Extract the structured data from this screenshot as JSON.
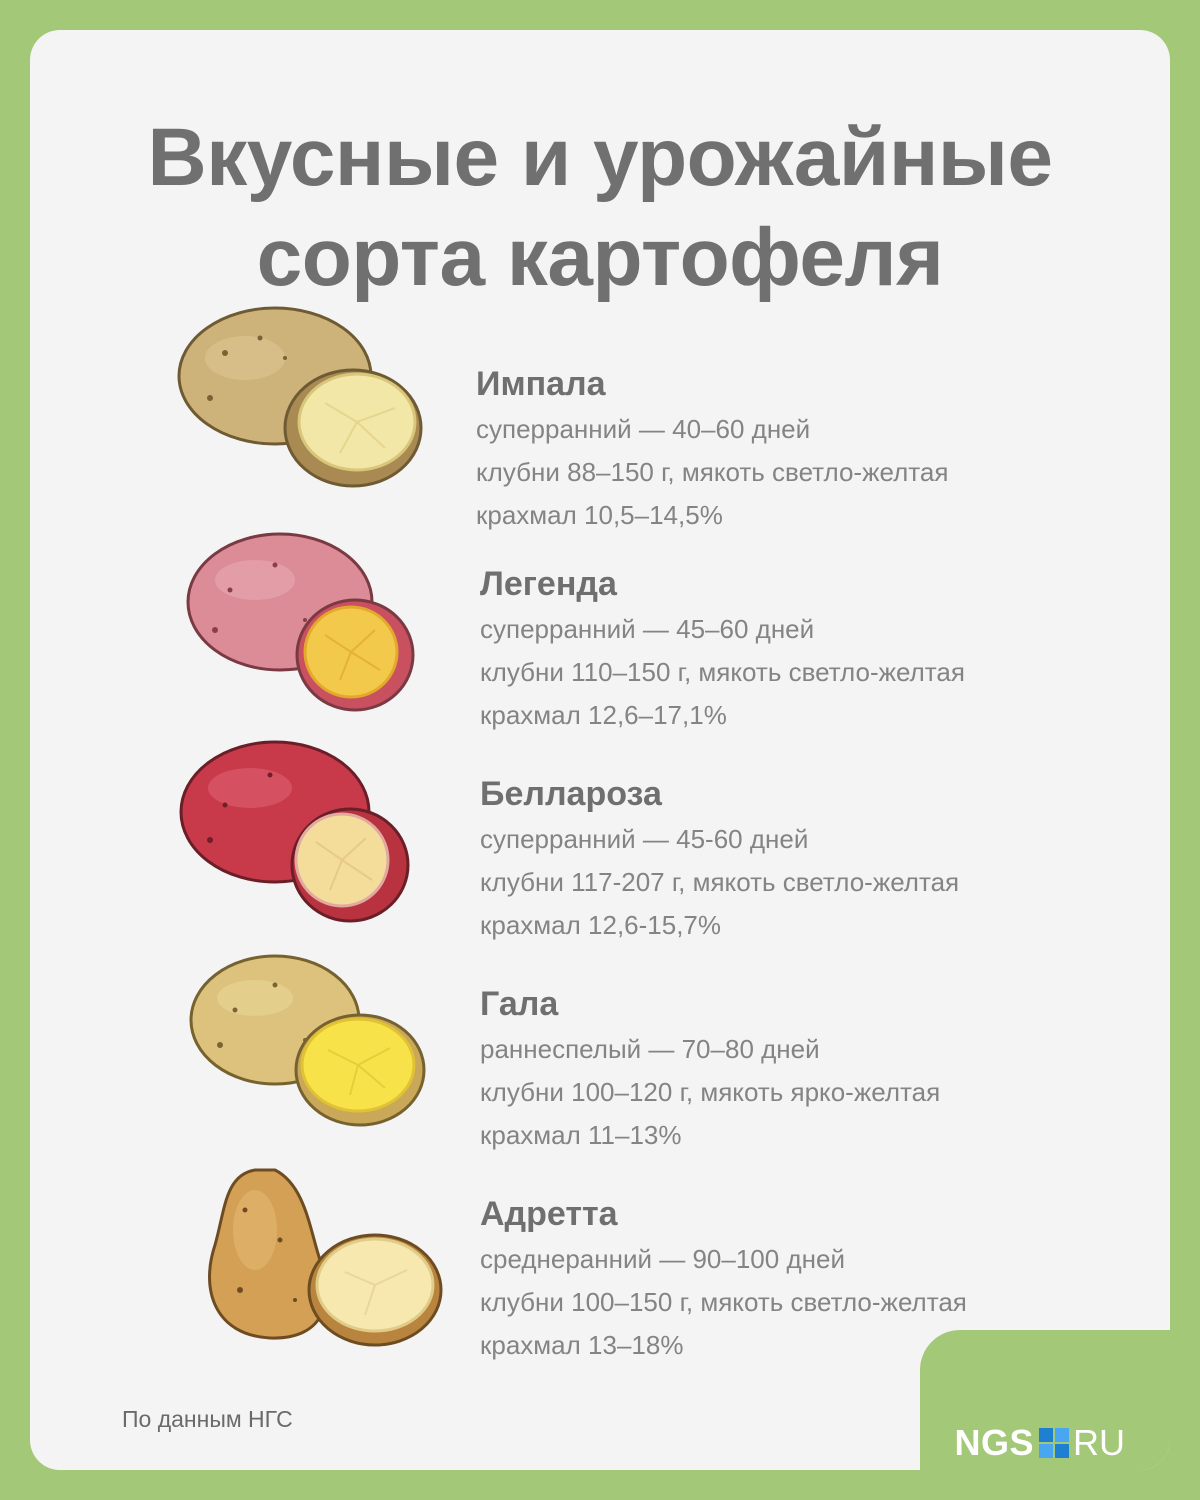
{
  "title": {
    "line1": "Вкусные и урожайные",
    "line2": "сорта картофеля"
  },
  "varieties": [
    {
      "name": "Импала",
      "maturity": "суперранний — 40–60 дней",
      "tubers": "клубни 88–150 г, мякоть светло-желтая",
      "starch": "крахмал 10,5–14,5%",
      "skin_color": "#c9b07a",
      "flesh_color": "#f3e7a8"
    },
    {
      "name": "Легенда",
      "maturity": "суперранний — 45–60 дней",
      "tubers": "клубни 110–150 г, мякоть светло-желтая",
      "starch": "крахмал 12,6–17,1%",
      "skin_color": "#d98a94",
      "flesh_color": "#f2c94a"
    },
    {
      "name": "Беллароза",
      "maturity": "суперранний — 45-60 дней",
      "tubers": "клубни 117-207 г, мякоть светло-желтая",
      "starch": "крахмал 12,6-15,7%",
      "skin_color": "#c83a4a",
      "flesh_color": "#f4dc9a"
    },
    {
      "name": "Гала",
      "maturity": "раннеспелый — 70–80 дней",
      "tubers": "клубни 100–120 г, мякоть ярко-желтая",
      "starch": "крахмал 11–13%",
      "skin_color": "#d9c07a",
      "flesh_color": "#f7e24a"
    },
    {
      "name": "Адретта",
      "maturity": "среднеранний — 90–100 дней",
      "tubers": "клубни 100–150 г, мякоть светло-желтая",
      "starch": "крахмал 13–18%",
      "skin_color": "#d2a055",
      "flesh_color": "#f7e8b0"
    }
  ],
  "source": "По данным НГС",
  "logo": {
    "ngs": "NGS",
    "ru": "RU",
    "background": "#a3c878",
    "square_colors": [
      "#1f7fd0",
      "#49a6f0",
      "#49a6f0",
      "#1f7fd0"
    ]
  },
  "colors": {
    "frame": "#a3c878",
    "card": "#f4f4f4",
    "title": "#707070",
    "text": "#848484"
  }
}
